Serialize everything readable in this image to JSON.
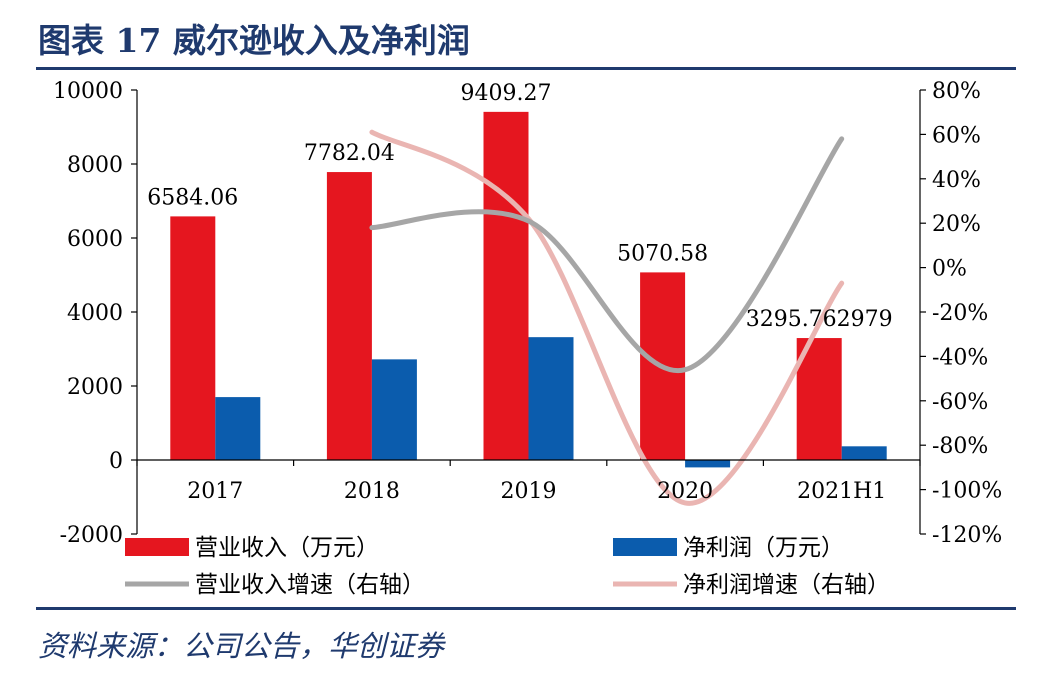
{
  "header": {
    "title": "图表 17    威尔逊收入及净利润"
  },
  "footer": {
    "source": "资料来源：公司公告，华创证券"
  },
  "colors": {
    "accent": "#1f3a6e",
    "revenue": "#e5161f",
    "profit": "#0b5cad",
    "revenue_growth": "#a6a6a6",
    "profit_growth": "#eab5b2"
  },
  "chart_data": {
    "type": "bar",
    "categories": [
      "2017",
      "2018",
      "2019",
      "2020",
      "2021H1"
    ],
    "series": [
      {
        "name": "营业收入（万元）",
        "type": "bar",
        "axis": "left",
        "color": "#e5161f",
        "values": [
          6584.06,
          7782.04,
          9409.27,
          5070.58,
          3295.762979
        ],
        "labels": [
          "6584.06",
          "7782.04",
          "9409.27",
          "5070.58",
          "3295.762979"
        ]
      },
      {
        "name": "净利润（万元）",
        "type": "bar",
        "axis": "left",
        "color": "#0b5cad",
        "values": [
          1700,
          2720,
          3320,
          -200,
          370
        ]
      },
      {
        "name": "营业收入增速（右轴）",
        "type": "line",
        "axis": "right",
        "color": "#a6a6a6",
        "x": [
          "2018",
          "2019",
          "2020",
          "2021H1"
        ],
        "values": [
          18,
          21,
          -46,
          58
        ]
      },
      {
        "name": "净利润增速（右轴）",
        "type": "line",
        "axis": "right",
        "color": "#eab5b2",
        "x": [
          "2018",
          "2019",
          "2020",
          "2021H1"
        ],
        "values": [
          61,
          22,
          -106,
          -7
        ]
      }
    ],
    "ylim": [
      -2000,
      10000
    ],
    "yticks": [
      "10000",
      "8000",
      "6000",
      "4000",
      "2000",
      "0",
      "-2000"
    ],
    "ytick_values": [
      10000,
      8000,
      6000,
      4000,
      2000,
      0,
      -2000
    ],
    "y2lim": [
      -120,
      80
    ],
    "y2ticks": [
      "80%",
      "60%",
      "40%",
      "20%",
      "0%",
      "-20%",
      "-40%",
      "-60%",
      "-80%",
      "-100%",
      "-120%"
    ],
    "y2tick_values": [
      80,
      60,
      40,
      20,
      0,
      -20,
      -40,
      -60,
      -80,
      -100,
      -120
    ],
    "grid": false,
    "legend_position": "bottom"
  }
}
